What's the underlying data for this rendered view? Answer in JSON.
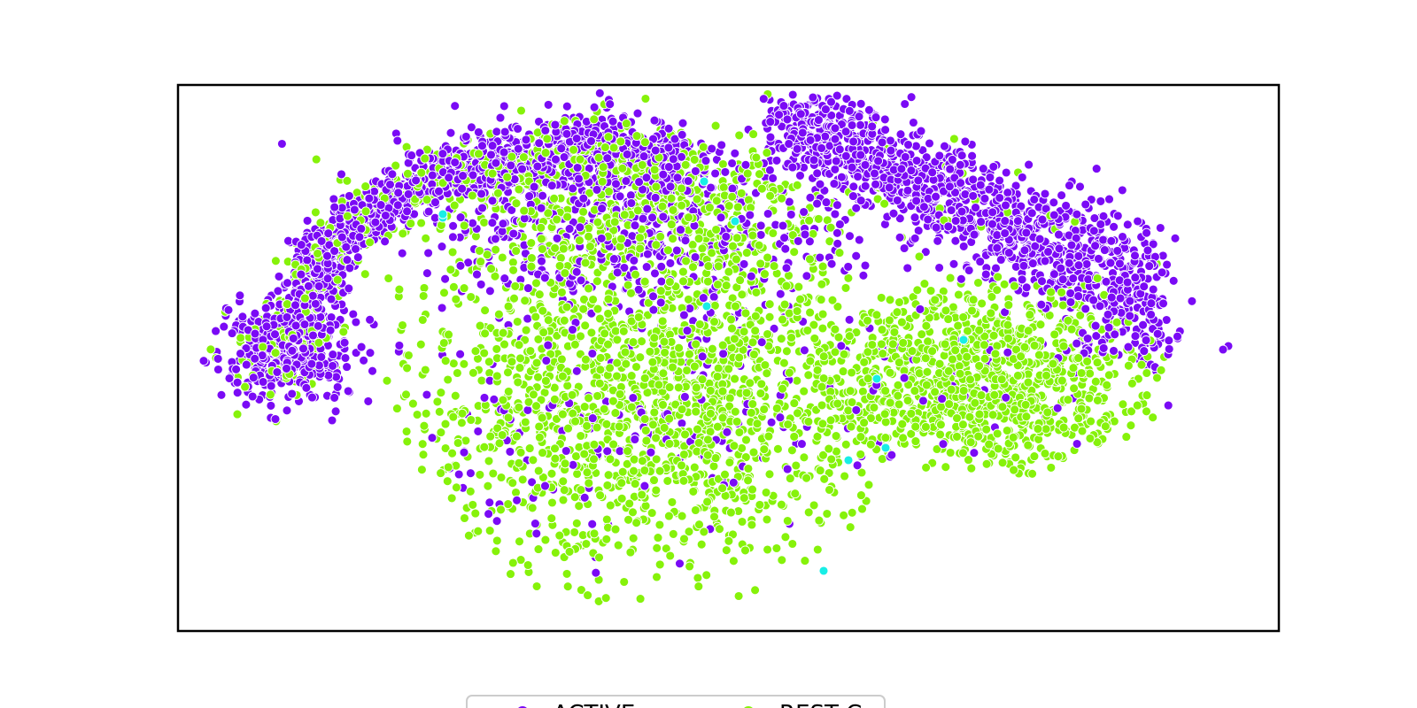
{
  "chart_data": {
    "type": "scatter",
    "title": "",
    "xlabel": "",
    "ylabel": "",
    "axes_ticks": "none",
    "grid": false,
    "legend": {
      "placement": "bottom-center",
      "entries": [
        "ACTIVE",
        "REST C"
      ]
    },
    "colors": {
      "purple": "#7a0af5",
      "green": "#86f20a",
      "cyan": "#18eee6"
    },
    "clusters": [
      {
        "color": "purple",
        "shape": "left arc",
        "share": 0.22
      },
      {
        "color": "purple",
        "shape": "upper-right band",
        "share": 0.16
      },
      {
        "color": "green",
        "shape": "large central blob",
        "share": 0.48
      },
      {
        "color": "green",
        "shape": "right lobe",
        "share": 0.14
      },
      {
        "color": "cyan",
        "shape": "sparse points",
        "count": 10
      }
    ]
  }
}
